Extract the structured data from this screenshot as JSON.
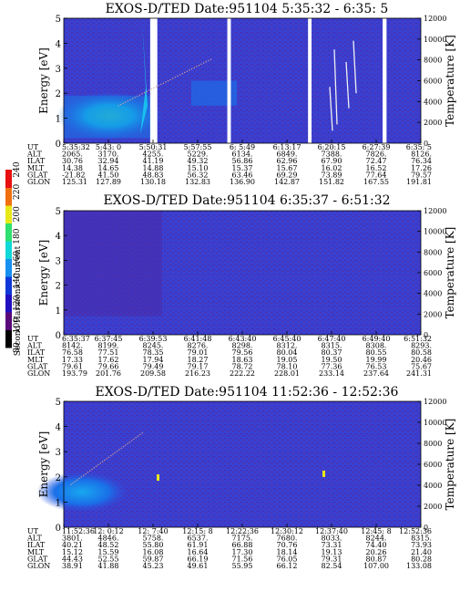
{
  "chart_data": [
    {
      "type": "heatmap",
      "title": "EXOS-D/TED   Date:951104   5:35:32 - 6:35: 5",
      "ylabel": "Energy [eV]",
      "ylabel_right": "Temperature [K]",
      "ylim": [
        0,
        5
      ],
      "ylim_right": [
        0,
        12000
      ],
      "yticks": [
        0,
        1,
        2,
        3,
        4,
        5
      ],
      "yticks_right": [
        0,
        2000,
        4000,
        6000,
        8000,
        10000,
        12000
      ],
      "data_gaps_fraction": [
        [
          0.242,
          0.262
        ],
        [
          0.458,
          0.468
        ],
        [
          0.684,
          0.694
        ],
        [
          0.893,
          0.904
        ]
      ],
      "row_labels": [
        "UT",
        "ALT",
        "ILAT",
        "MLT",
        "GLAT",
        "GLON"
      ],
      "columns": [
        [
          "5:35:32",
          "2065.",
          "30.76",
          "14.38",
          "-21.82",
          "125.31"
        ],
        [
          "5:43: 0",
          "3170.",
          "32.94",
          "14.65",
          "41.50",
          "127.89"
        ],
        [
          "5:50:31",
          "4255.",
          "41.19",
          "14.88",
          "48.83",
          "130.18"
        ],
        [
          "5:57:55",
          "5229.",
          "49.32",
          "15.10",
          "56.32",
          "132.83"
        ],
        [
          "6: 5:49",
          "6134.",
          "56.86",
          "15.37",
          "63.46",
          "136.90"
        ],
        [
          "6:13:17",
          "6849.",
          "62.96",
          "15.67",
          "69.29",
          "142.87"
        ],
        [
          "6:20:15",
          "7388.",
          "67.90",
          "16.02",
          "73.89",
          "151.82"
        ],
        [
          "6:27:39",
          "7826.",
          "72.47",
          "16.52",
          "77.64",
          "167.55"
        ],
        [
          "6:35: 5",
          "8126.",
          "76.34",
          "17.26",
          "79.57",
          "191.81"
        ]
      ]
    },
    {
      "type": "heatmap",
      "title": "EXOS-D/TED   Date:951104   6:35:37 - 6:51:32",
      "ylabel": "Energy [eV]",
      "ylabel_right": "Temperature [K]",
      "ylim": [
        0,
        5
      ],
      "ylim_right": [
        0,
        12000
      ],
      "yticks": [
        0,
        1,
        2,
        3,
        4,
        5
      ],
      "yticks_right": [
        0,
        2000,
        4000,
        6000,
        8000,
        10000,
        12000
      ],
      "row_labels": [
        "UT",
        "ALT",
        "ILAT",
        "MLT",
        "GLAT",
        "GLON"
      ],
      "columns": [
        [
          "6:35:37",
          "8142.",
          "76.58",
          "17.33",
          "79.61",
          "193.79"
        ],
        [
          "6:37:45",
          "8199.",
          "77.51",
          "17.62",
          "79.66",
          "201.76"
        ],
        [
          "6:39:53",
          "8245.",
          "78.35",
          "17.94",
          "79.49",
          "209.58"
        ],
        [
          "6:41:48",
          "8276.",
          "79.01",
          "18.27",
          "79.17",
          "216.23"
        ],
        [
          "6:43:40",
          "8298.",
          "79.56",
          "18.63",
          "78.72",
          "222.22"
        ],
        [
          "6:45:40",
          "8312.",
          "80.04",
          "19.05",
          "78.10",
          "228.01"
        ],
        [
          "6:47:40",
          "8315.",
          "80.37",
          "19.50",
          "77.36",
          "233.14"
        ],
        [
          "6:49:40",
          "8308.",
          "80.55",
          "19.99",
          "76.53",
          "237.64"
        ],
        [
          "6:51:32",
          "8293.",
          "80.58",
          "20.46",
          "75.67",
          "241.31"
        ]
      ]
    },
    {
      "type": "heatmap",
      "title": "EXOS-D/TED   Date:951104   11:52:36 - 12:52:36",
      "ylabel": "Energy [eV]",
      "ylabel_right": "Temperature [K]",
      "ylim": [
        0,
        5
      ],
      "ylim_right": [
        0,
        12000
      ],
      "yticks": [
        0,
        1,
        2,
        3,
        4,
        5
      ],
      "yticks_right": [
        0,
        2000,
        4000,
        6000,
        8000,
        10000,
        12000
      ],
      "row_labels": [
        "UT",
        "ALT",
        "ILAT",
        "MLT",
        "GLAT",
        "GLON"
      ],
      "columns": [
        [
          "11:52:36",
          "3801.",
          "40.21",
          "15.12",
          "44.43",
          "38.91"
        ],
        [
          "12: 0:12",
          "4846.",
          "48.52",
          "15.59",
          "52.55",
          "41.88"
        ],
        [
          "12: 7:40",
          "5758.",
          "55.80",
          "16.08",
          "59.87",
          "45.23"
        ],
        [
          "12:15: 8",
          "6537.",
          "61.91",
          "16.64",
          "66.19",
          "49.61"
        ],
        [
          "12:22:36",
          "7175.",
          "66.88",
          "17.30",
          "71.56",
          "55.95"
        ],
        [
          "12:30:12",
          "7680.",
          "70.76",
          "18.14",
          "76.05",
          "66.12"
        ],
        [
          "12:37:40",
          "8033.",
          "73.31",
          "19.13",
          "79.31",
          "82.54"
        ],
        [
          "12:45: 8",
          "8244.",
          "74.40",
          "20.26",
          "80.87",
          "107.00"
        ],
        [
          "12:52:36",
          "8315.",
          "73.93",
          "21.40",
          "80.28",
          "133.08"
        ]
      ]
    }
  ],
  "colorbar": {
    "label": "Second Harmonic Current",
    "ticks": [
      "80",
      "100",
      "120",
      "140",
      "160",
      "180",
      "200",
      "220",
      "240"
    ],
    "colors": [
      "#000000",
      "#5a0a78",
      "#2010c0",
      "#1038d8",
      "#1890f0",
      "#10d8d8",
      "#30e070",
      "#e8e818",
      "#f07010",
      "#e81010"
    ]
  },
  "colors": {
    "background_field": "#3a3fd0",
    "dot_trace": "#d0a0a0"
  }
}
